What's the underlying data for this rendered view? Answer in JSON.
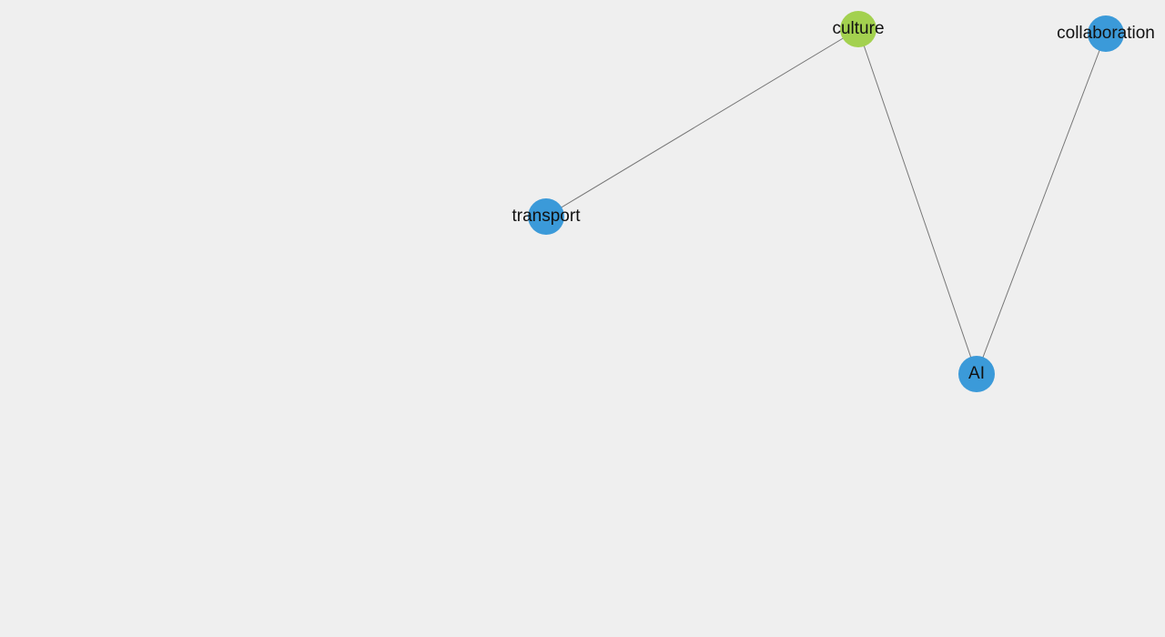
{
  "graph": {
    "background_color": "#efefef",
    "edge_color": "#777777",
    "nodes": [
      {
        "id": "culture",
        "label": "culture",
        "color": "#a3d14f"
      },
      {
        "id": "collaboration",
        "label": "collaboration",
        "color": "#3b9ad9"
      },
      {
        "id": "transport",
        "label": "transport",
        "color": "#3b9ad9"
      },
      {
        "id": "ai",
        "label": "AI",
        "color": "#3b9ad9"
      }
    ],
    "edges": [
      {
        "source": "transport",
        "target": "culture"
      },
      {
        "source": "culture",
        "target": "ai"
      },
      {
        "source": "collaboration",
        "target": "ai"
      }
    ]
  }
}
